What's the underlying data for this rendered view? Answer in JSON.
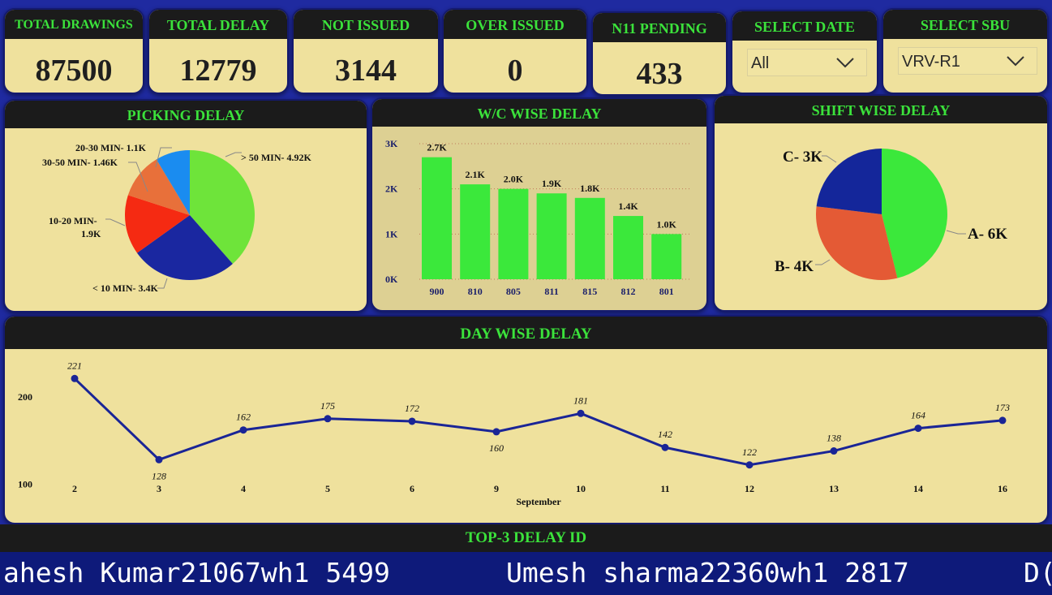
{
  "kpis": {
    "total_drawings": {
      "label": "TOTAL DRAWINGS",
      "value": "87500"
    },
    "total_delay": {
      "label": "TOTAL DELAY",
      "value": "12779"
    },
    "not_issued": {
      "label": "NOT ISSUED",
      "value": "3144"
    },
    "over_issued": {
      "label": "OVER ISSUED",
      "value": "0"
    },
    "n11_pending": {
      "label": "N11 PENDING",
      "value": "433"
    }
  },
  "filters": {
    "date": {
      "label": "SELECT DATE",
      "value": "All",
      "icon": "chevron-down-icon"
    },
    "sbu": {
      "label": "SELECT SBU",
      "value": "VRV-R1",
      "icon": "chevron-down-icon"
    }
  },
  "picking": {
    "title": "PICKING DELAY",
    "chart_data": {
      "type": "pie",
      "slices": [
        {
          "label": "> 50 MIN- 4.92K",
          "value": 4920,
          "color": "#6ee43a"
        },
        {
          "label": "< 10 MIN- 3.4K",
          "value": 3400,
          "color": "#1a27a0"
        },
        {
          "label": "10-20 MIN- 1.9K",
          "value": 1900,
          "color": "#f52a12"
        },
        {
          "label": "30-50 MIN- 1.46K",
          "value": 1460,
          "color": "#e8703a"
        },
        {
          "label": "20-30 MIN- 1.1K",
          "value": 1100,
          "color": "#1a8cf0"
        }
      ],
      "label_lines": {
        "gt50": "> 50 MIN- 4.92K",
        "lt10": "< 10 MIN- 3.4K",
        "m1020a": "10-20 MIN-",
        "m1020b": "1.9K",
        "m3050": "30-50 MIN- 1.46K",
        "m2030": "20-30 MIN- 1.1K"
      }
    }
  },
  "wc": {
    "title": "W/C WISE DELAY",
    "chart_data": {
      "type": "bar",
      "categories": [
        "900",
        "810",
        "805",
        "811",
        "815",
        "812",
        "801"
      ],
      "values": [
        2700,
        2100,
        2000,
        1900,
        1800,
        1400,
        1000
      ],
      "data_labels": [
        "2.7K",
        "2.1K",
        "2.0K",
        "1.9K",
        "1.8K",
        "1.4K",
        "1.0K"
      ],
      "y_ticks": [
        "0K",
        "1K",
        "2K",
        "3K"
      ],
      "ylim": [
        0,
        3000
      ],
      "bar_color": "#3be83b"
    }
  },
  "shift": {
    "title": "SHIFT WISE DELAY",
    "chart_data": {
      "type": "pie",
      "slices": [
        {
          "label": "A- 6K",
          "value": 6000,
          "color": "#3be83b"
        },
        {
          "label": "B- 4K",
          "value": 4000,
          "color": "#e45a35"
        },
        {
          "label": "C- 3K",
          "value": 3000,
          "color": "#14269a"
        }
      ]
    }
  },
  "day": {
    "title": "DAY WISE DELAY",
    "chart_data": {
      "type": "line",
      "x": [
        "2",
        "3",
        "4",
        "5",
        "6",
        "9",
        "10",
        "11",
        "12",
        "13",
        "14",
        "16"
      ],
      "values": [
        221,
        128,
        162,
        175,
        172,
        160,
        181,
        142,
        122,
        138,
        164,
        173
      ],
      "xlabel": "September",
      "y_ticks": [
        "100",
        "200"
      ],
      "ylim": [
        100,
        225
      ],
      "line_color": "#1a2596"
    }
  },
  "top3": {
    "title": "TOP-3 DELAY ID",
    "items": [
      "ahesh Kumar21067wh1 5499",
      "Umesh sharma22360wh1 2817",
      "D("
    ]
  }
}
